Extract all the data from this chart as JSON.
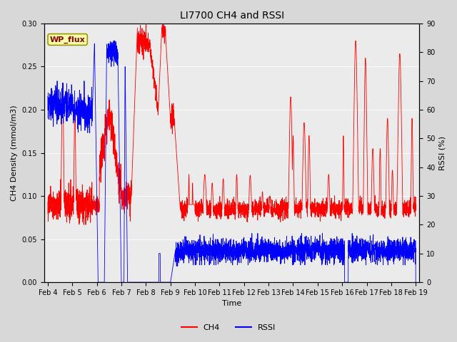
{
  "title": "LI7700 CH4 and RSSI",
  "xlabel": "Time",
  "ylabel_left": "CH4 Density (mmol/m3)",
  "ylabel_right": "RSSI (%)",
  "ylim_left": [
    0.0,
    0.3
  ],
  "ylim_right": [
    0,
    90
  ],
  "yticks_left": [
    0.0,
    0.05,
    0.1,
    0.15,
    0.2,
    0.25,
    0.3
  ],
  "yticks_right": [
    0,
    10,
    20,
    30,
    40,
    50,
    60,
    70,
    80,
    90
  ],
  "ch4_color": "#FF0000",
  "rssi_color": "#0000FF",
  "fig_facecolor": "#D8D8D8",
  "ax_facecolor": "#EBEBEB",
  "legend_label_ch4": "CH4",
  "legend_label_rssi": "RSSI",
  "site_label": "WP_flux",
  "site_label_fg": "#8B0000",
  "site_label_bg": "#FFFFAA",
  "site_label_border": "#999900",
  "xlim": [
    3.85,
    19.15
  ],
  "xtick_positions": [
    4,
    5,
    6,
    7,
    8,
    9,
    10,
    11,
    12,
    13,
    14,
    15,
    16,
    17,
    18,
    19
  ],
  "xtick_labels": [
    "Feb 4",
    "Feb 5",
    "Feb 6",
    "Feb 7",
    "Feb 8",
    "Feb 9",
    "Feb 10",
    "Feb 11",
    "Feb 12",
    "Feb 13",
    "Feb 14",
    "Feb 15",
    "Feb 16",
    "Feb 17",
    "Feb 18",
    "Feb 19"
  ],
  "title_fontsize": 10,
  "label_fontsize": 8,
  "tick_fontsize": 7,
  "legend_fontsize": 8,
  "linewidth_ch4": 0.6,
  "linewidth_rssi": 0.6
}
